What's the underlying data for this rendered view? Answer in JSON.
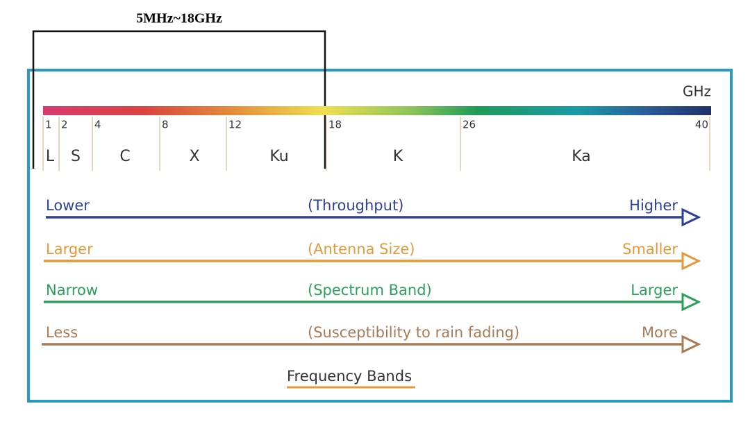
{
  "bracket_label": "5MHz~18GHz",
  "unit": "GHz",
  "ticks": [
    "1",
    "2",
    "4",
    "8",
    "12",
    "18",
    "26",
    "40"
  ],
  "bands": [
    "L",
    "S",
    "C",
    "X",
    "Ku",
    "K",
    "Ka"
  ],
  "arrows": [
    {
      "left": "Lower",
      "center": "(Throughput)",
      "right": "Higher"
    },
    {
      "left": "Larger",
      "center": "(Antenna Size)",
      "right": "Smaller"
    },
    {
      "left": "Narrow",
      "center": "(Spectrum Band)",
      "right": "Larger"
    },
    {
      "left": "Less",
      "center": "(Susceptibility to rain fading)",
      "right": "More"
    }
  ],
  "caption": "Frequency Bands"
}
